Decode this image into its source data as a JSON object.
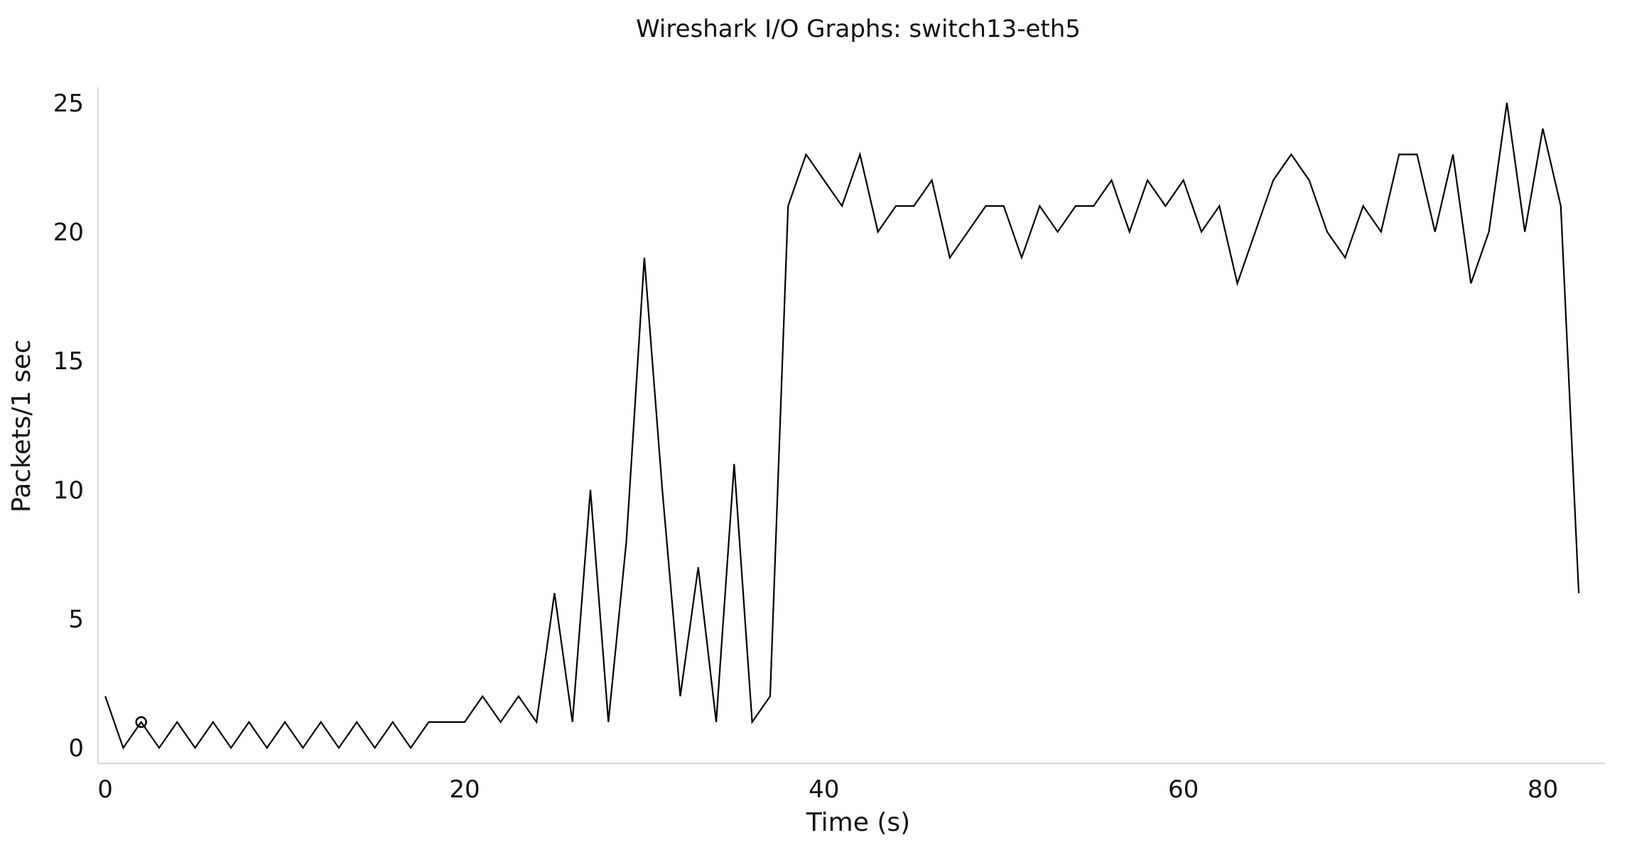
{
  "chart_data": {
    "type": "line",
    "title": "Wireshark I/O Graphs: switch13-eth5",
    "xlabel": "Time (s)",
    "ylabel": "Packets/1 sec",
    "xlim": [
      -0.4,
      83.5
    ],
    "ylim": [
      -0.6,
      25.6
    ],
    "xticks": [
      0,
      20,
      40,
      60,
      80
    ],
    "yticks": [
      0,
      5,
      10,
      15,
      20,
      25
    ],
    "grid": false,
    "line_color": "#000000",
    "series": [
      {
        "x": [
          0,
          1,
          2,
          3,
          4,
          5,
          6,
          7,
          8,
          9,
          10,
          11,
          12,
          13,
          14,
          15,
          16,
          17,
          18,
          19,
          20,
          21,
          22,
          23,
          24,
          25,
          26,
          27,
          28,
          29,
          30,
          31,
          32,
          33,
          34,
          35,
          36,
          37,
          38,
          39,
          40,
          41,
          42,
          43,
          44,
          45,
          46,
          47,
          48,
          49,
          50,
          51,
          52,
          53,
          54,
          55,
          56,
          57,
          58,
          59,
          60,
          61,
          62,
          63,
          64,
          65,
          66,
          67,
          68,
          69,
          70,
          71,
          72,
          73,
          74,
          75,
          76,
          77,
          78,
          79,
          80,
          81,
          82
        ],
        "values": [
          2,
          0,
          1,
          0,
          1,
          0,
          1,
          0,
          1,
          0,
          1,
          0,
          1,
          0,
          1,
          0,
          1,
          0,
          1,
          1,
          1,
          2,
          1,
          2,
          1,
          6,
          1,
          10,
          1,
          8,
          19,
          10,
          2,
          7,
          1,
          11,
          1,
          2,
          21,
          23,
          22,
          21,
          23,
          20,
          21,
          21,
          22,
          19,
          20,
          21,
          21,
          19,
          21,
          20,
          21,
          21,
          22,
          20,
          22,
          21,
          22,
          20,
          21,
          18,
          20,
          22,
          23,
          22,
          20,
          19,
          21,
          20,
          23,
          23,
          20,
          23,
          18,
          20,
          25,
          20,
          24,
          21,
          6
        ]
      }
    ],
    "marker_point": {
      "x": 2,
      "y": 1
    }
  }
}
